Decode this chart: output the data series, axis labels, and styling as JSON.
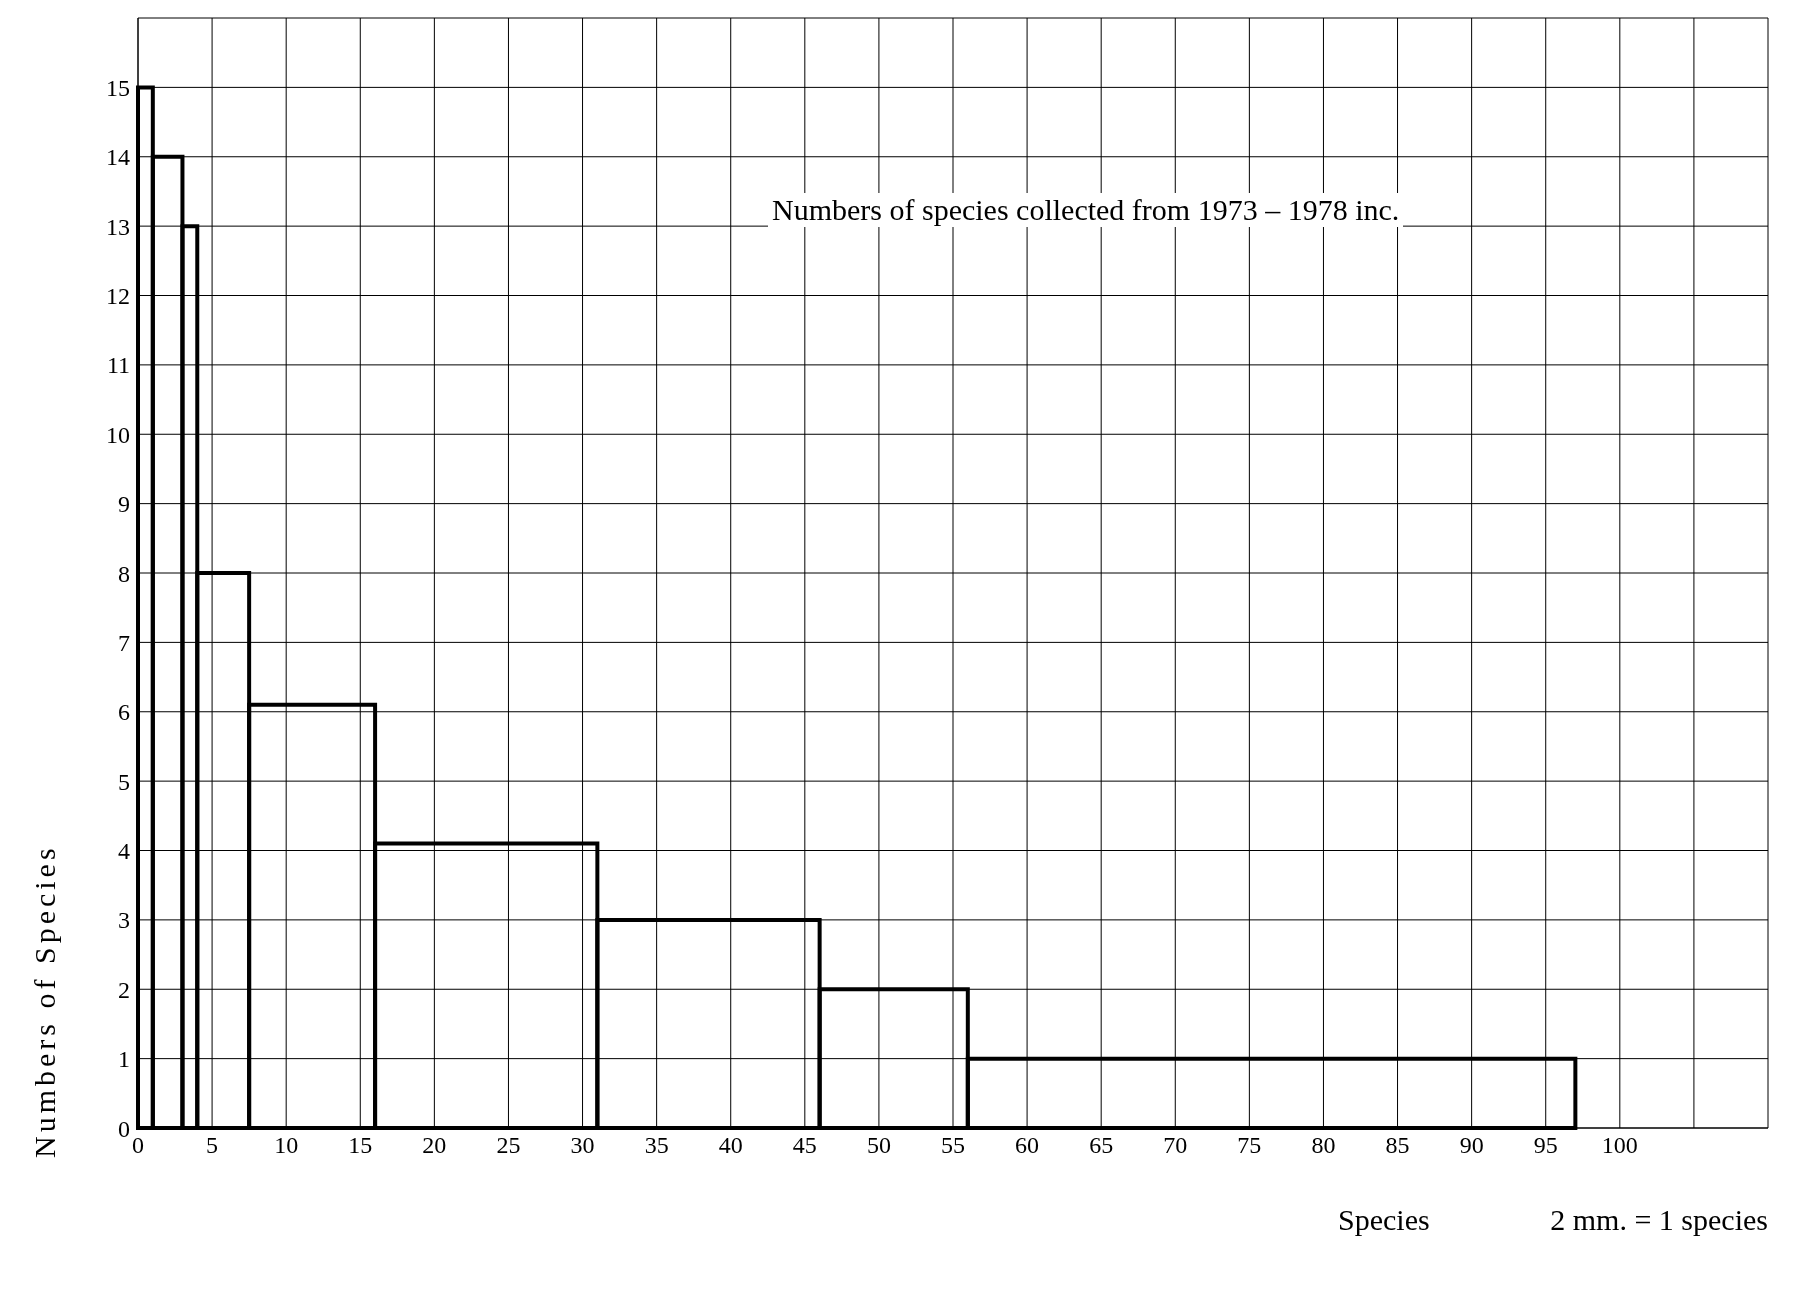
{
  "chart_data": {
    "type": "histogram",
    "title": "Numbers of species collected from 1973 – 1978 inc.",
    "xlabel": "Species",
    "ylabel": "Numbers of Species",
    "annotations": [
      "2 mm. = 1 species"
    ],
    "bins": [
      0,
      1,
      3,
      4,
      7.5,
      16,
      31,
      46,
      56,
      97
    ],
    "values": [
      15,
      14,
      13,
      8,
      6.1,
      4.1,
      3,
      2,
      1
    ],
    "color": "#000000",
    "xlim": [
      0,
      110
    ],
    "xticks": [
      0,
      5,
      10,
      15,
      20,
      25,
      30,
      35,
      40,
      45,
      50,
      55,
      60,
      65,
      70,
      75,
      80,
      85,
      90,
      95,
      100,
      {
        "value": 105,
        "label": null
      },
      {
        "value": 110,
        "label": null
      }
    ],
    "ylim": [
      0,
      16
    ],
    "yticks": [
      0,
      1,
      2,
      3,
      4,
      5,
      6,
      7,
      8,
      9,
      10,
      11,
      12,
      13,
      14,
      15,
      {
        "value": 16,
        "label": null
      }
    ],
    "grid": true
  }
}
